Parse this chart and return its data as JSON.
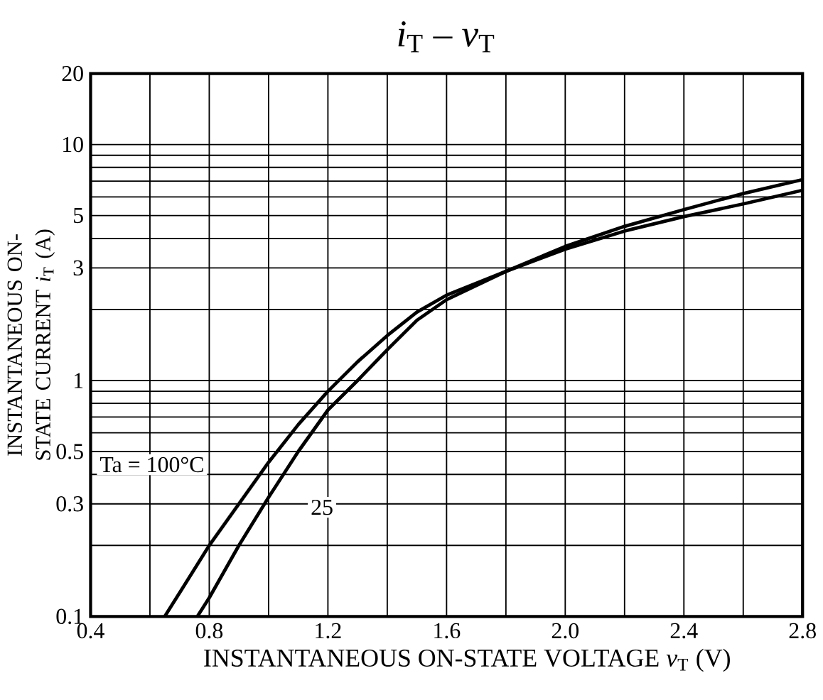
{
  "chart_data": {
    "type": "line",
    "title": "*i*$_{T}$ – *v*$_{T}$",
    "xlabel": "INSTANTANEOUS ON-STATE VOLTAGE *v*$_{T}$ (V)",
    "ylabel": "INSTANTANEOUS ON-STATE CURRENT *i*$_{T}$ (A)",
    "log": "y",
    "grid": true,
    "marker": "none",
    "line_style": "solid",
    "xlim": [
      0.4,
      2.8
    ],
    "ylim": [
      0.1,
      20
    ],
    "xticks": [
      0.4,
      {
        "value": 0.6,
        "label": null
      },
      0.8,
      {
        "value": 1.0,
        "label": null
      },
      1.2,
      {
        "value": 1.4,
        "label": null
      },
      1.6,
      {
        "value": 1.8,
        "label": null
      },
      {
        "value": 2.0,
        "label": "2.0"
      },
      {
        "value": 2.2,
        "label": null
      },
      2.4,
      {
        "value": 2.6,
        "label": null
      },
      2.8
    ],
    "yticks": [
      0.1,
      {
        "value": 0.2,
        "label": null
      },
      0.3,
      {
        "value": 0.4,
        "label": null
      },
      0.5,
      {
        "value": 0.6,
        "label": null
      },
      {
        "value": 0.7,
        "label": null
      },
      {
        "value": 0.8,
        "label": null
      },
      {
        "value": 0.9,
        "label": null
      },
      1,
      {
        "value": 2,
        "label": null
      },
      3,
      {
        "value": 4,
        "label": null
      },
      5,
      {
        "value": 6,
        "label": null
      },
      {
        "value": 7,
        "label": null
      },
      {
        "value": 8,
        "label": null
      },
      {
        "value": 9,
        "label": null
      },
      10,
      20
    ],
    "series": [
      {
        "name": "Ta = 100°C",
        "color": "#000000",
        "x": [
          0.65,
          0.8,
          0.9,
          1.0,
          1.1,
          1.2,
          1.3,
          1.4,
          1.5,
          1.6,
          1.8,
          2.0,
          2.2,
          2.4,
          2.6,
          2.8
        ],
        "values": [
          0.1,
          0.2,
          0.3,
          0.45,
          0.65,
          0.9,
          1.2,
          1.55,
          1.95,
          2.3,
          2.9,
          3.6,
          4.3,
          4.95,
          5.6,
          6.4
        ]
      },
      {
        "name": "25",
        "color": "#000000",
        "x": [
          0.76,
          0.8,
          0.9,
          1.0,
          1.1,
          1.2,
          1.3,
          1.4,
          1.5,
          1.6,
          1.8,
          2.0,
          2.2,
          2.4,
          2.6,
          2.8
        ],
        "values": [
          0.1,
          0.12,
          0.2,
          0.32,
          0.5,
          0.75,
          1.0,
          1.35,
          1.8,
          2.2,
          2.9,
          3.7,
          4.5,
          5.3,
          6.2,
          7.1
        ]
      }
    ]
  }
}
